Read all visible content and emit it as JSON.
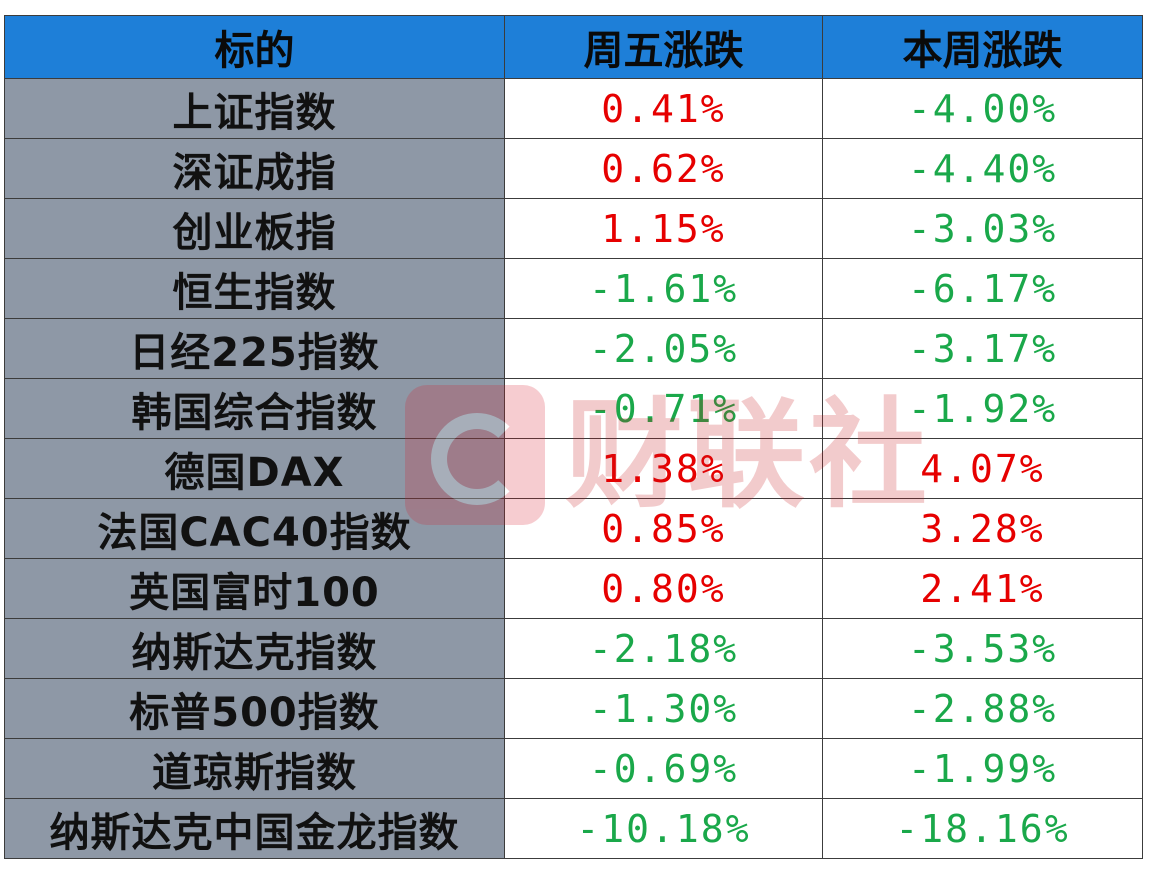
{
  "table": {
    "headers": [
      "标的",
      "周五涨跌",
      "本周涨跌"
    ],
    "rows": [
      {
        "name": "上证指数",
        "fri": "0.41%",
        "fri_dir": "up",
        "week": "-4.00%",
        "week_dir": "down"
      },
      {
        "name": "深证成指",
        "fri": "0.62%",
        "fri_dir": "up",
        "week": "-4.40%",
        "week_dir": "down"
      },
      {
        "name": "创业板指",
        "fri": "1.15%",
        "fri_dir": "up",
        "week": "-3.03%",
        "week_dir": "down"
      },
      {
        "name": "恒生指数",
        "fri": "-1.61%",
        "fri_dir": "down",
        "week": "-6.17%",
        "week_dir": "down"
      },
      {
        "name": "日经225指数",
        "fri": "-2.05%",
        "fri_dir": "down",
        "week": "-3.17%",
        "week_dir": "down"
      },
      {
        "name": "韩国综合指数",
        "fri": "-0.71%",
        "fri_dir": "down",
        "week": "-1.92%",
        "week_dir": "down"
      },
      {
        "name": "德国DAX",
        "fri": "1.38%",
        "fri_dir": "up",
        "week": "4.07%",
        "week_dir": "up"
      },
      {
        "name": "法国CAC40指数",
        "fri": "0.85%",
        "fri_dir": "up",
        "week": "3.28%",
        "week_dir": "up"
      },
      {
        "name": "英国富时100",
        "fri": "0.80%",
        "fri_dir": "up",
        "week": "2.41%",
        "week_dir": "up"
      },
      {
        "name": "纳斯达克指数",
        "fri": "-2.18%",
        "fri_dir": "down",
        "week": "-3.53%",
        "week_dir": "down"
      },
      {
        "name": "标普500指数",
        "fri": "-1.30%",
        "fri_dir": "down",
        "week": "-2.88%",
        "week_dir": "down"
      },
      {
        "name": "道琼斯指数",
        "fri": "-0.69%",
        "fri_dir": "down",
        "week": "-1.99%",
        "week_dir": "down"
      },
      {
        "name": "纳斯达克中国金龙指数",
        "fri": "-10.18%",
        "fri_dir": "down",
        "week": "-18.16%",
        "week_dir": "down"
      }
    ]
  },
  "colors": {
    "header_bg": "#1e7fd8",
    "name_bg": "#8e98a6",
    "up": "#e60000",
    "down": "#1aa84a"
  },
  "watermark": {
    "text": "财联社",
    "icon": "cls-logo-icon"
  }
}
